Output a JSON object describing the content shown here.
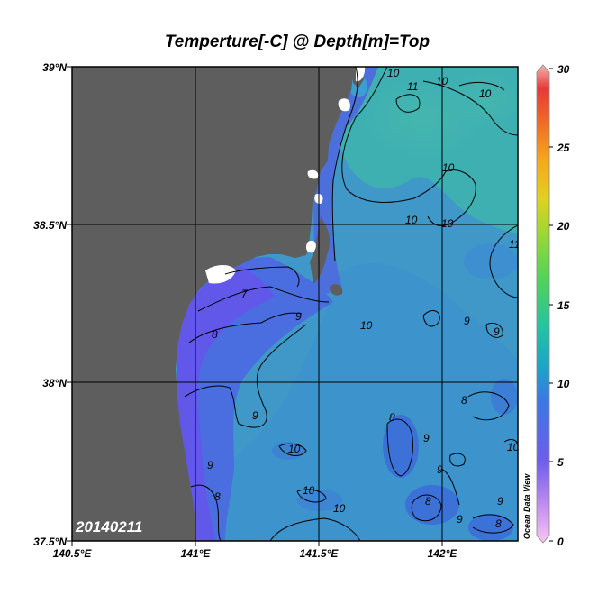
{
  "title": "Temperture[-C] @ Depth[m]=Top",
  "date_label": "20140211",
  "watermark": "Ocean Data View",
  "colors": {
    "land": "#5e5e5e",
    "ocean_mid": "#41aab8",
    "ocean_cool": "#3f7fd8",
    "ocean_cold": "#6a58e8",
    "frame": "#000000"
  },
  "axes": {
    "lat_labels": [
      "39°N",
      "38.5°N",
      "38°N",
      "37.5°N"
    ],
    "lon_labels": [
      "140.5°E",
      "141°E",
      "141.5°E",
      "142°E"
    ]
  },
  "colorbar": {
    "min": 0,
    "max": 30,
    "tick_labels": [
      "30",
      "25",
      "20",
      "15",
      "10",
      "5",
      "0"
    ]
  },
  "contour_labels": [
    "11",
    "10",
    "10",
    "10",
    "10",
    "10",
    "10",
    "10",
    "11",
    "9",
    "7",
    "8",
    "8",
    "9",
    "9",
    "9",
    "9",
    "9",
    "9",
    "10",
    "10",
    "10",
    "8",
    "8",
    "8",
    "8",
    "9",
    "9",
    "10"
  ]
}
